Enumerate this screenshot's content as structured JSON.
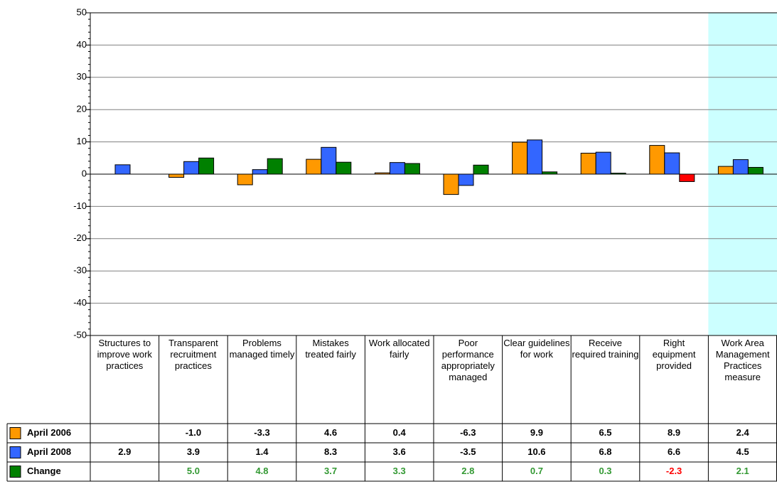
{
  "chart_data": {
    "type": "bar",
    "categories": [
      "Structures to improve work practices",
      "Transparent recruitment practices",
      "Problems managed timely",
      "Mistakes treated fairly",
      "Work allocated fairly",
      "Poor performance appropriately managed",
      "Clear guidelines for work",
      "Receive required training",
      "Right equipment provided",
      "Work Area Management Practices measure"
    ],
    "highlight": "Work Area Management Practices measure",
    "highlight_color": "#ccffff",
    "series": [
      {
        "name": "April 2006",
        "color": "#ff9900",
        "text_color": "#000000",
        "values": [
          null,
          -1.0,
          -3.3,
          4.6,
          0.4,
          -6.3,
          9.9,
          6.5,
          8.9,
          2.4
        ],
        "value_labels": [
          null,
          "-1.0",
          "-3.3",
          "4.6",
          "0.4",
          "-6.3",
          "9.9",
          "6.5",
          "8.9",
          "2.4"
        ]
      },
      {
        "name": "April 2008",
        "color": "#3366ff",
        "text_color": "#000000",
        "values": [
          2.9,
          3.9,
          1.4,
          8.3,
          3.6,
          -3.5,
          10.6,
          6.8,
          6.6,
          4.5
        ],
        "value_labels": [
          "2.9",
          "3.9",
          "1.4",
          "8.3",
          "3.6",
          "-3.5",
          "10.6",
          "6.8",
          "6.6",
          "4.5"
        ]
      },
      {
        "name": "Change",
        "color": "#008000",
        "text_color": "#339933",
        "negative_color": "#ff0000",
        "values": [
          null,
          5.0,
          4.8,
          3.7,
          3.3,
          2.8,
          0.7,
          0.3,
          -2.3,
          2.1
        ],
        "value_labels": [
          null,
          "5.0",
          "4.8",
          "3.7",
          "3.3",
          "2.8",
          "0.7",
          "0.3",
          "-2.3",
          "2.1"
        ]
      }
    ],
    "ylim": [
      -50,
      50
    ],
    "yticks": [
      -50,
      -40,
      -30,
      -20,
      -10,
      0,
      10,
      20,
      30,
      40,
      50
    ],
    "grid": true
  }
}
